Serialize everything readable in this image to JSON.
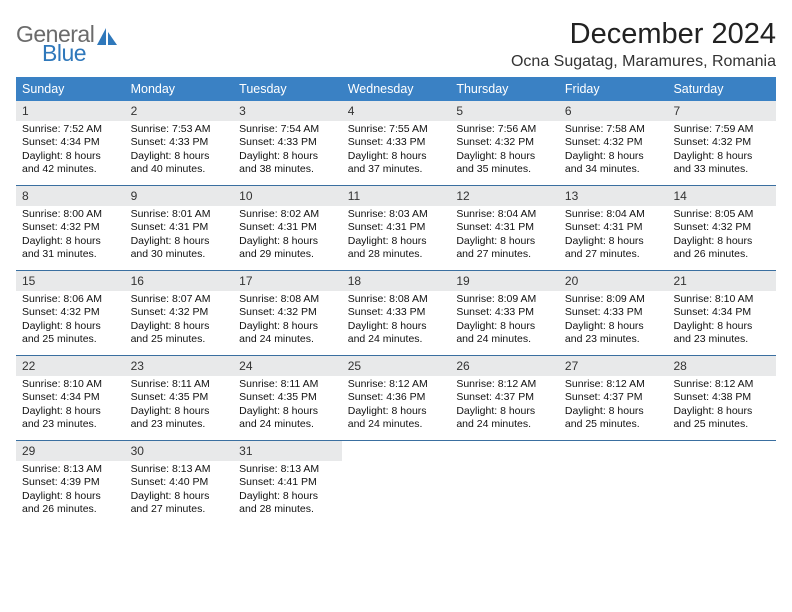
{
  "logo": {
    "word1": "General",
    "word2": "Blue"
  },
  "title": "December 2024",
  "location": "Ocna Sugatag, Maramures, Romania",
  "colors": {
    "header_bg": "#3a81c4",
    "daynum_bg": "#e8e9ea",
    "week_border": "#3a6fa0",
    "logo_gray": "#6b6b6b",
    "logo_blue": "#2f78bb"
  },
  "typography": {
    "title_fontsize": 29,
    "location_fontsize": 16,
    "dow_fontsize": 12.5,
    "daynum_fontsize": 12,
    "body_fontsize": 10.5
  },
  "days_of_week": [
    "Sunday",
    "Monday",
    "Tuesday",
    "Wednesday",
    "Thursday",
    "Friday",
    "Saturday"
  ],
  "weeks": [
    [
      {
        "n": "1",
        "sr": "7:52 AM",
        "ss": "4:34 PM",
        "dl": "8 hours and 42 minutes."
      },
      {
        "n": "2",
        "sr": "7:53 AM",
        "ss": "4:33 PM",
        "dl": "8 hours and 40 minutes."
      },
      {
        "n": "3",
        "sr": "7:54 AM",
        "ss": "4:33 PM",
        "dl": "8 hours and 38 minutes."
      },
      {
        "n": "4",
        "sr": "7:55 AM",
        "ss": "4:33 PM",
        "dl": "8 hours and 37 minutes."
      },
      {
        "n": "5",
        "sr": "7:56 AM",
        "ss": "4:32 PM",
        "dl": "8 hours and 35 minutes."
      },
      {
        "n": "6",
        "sr": "7:58 AM",
        "ss": "4:32 PM",
        "dl": "8 hours and 34 minutes."
      },
      {
        "n": "7",
        "sr": "7:59 AM",
        "ss": "4:32 PM",
        "dl": "8 hours and 33 minutes."
      }
    ],
    [
      {
        "n": "8",
        "sr": "8:00 AM",
        "ss": "4:32 PM",
        "dl": "8 hours and 31 minutes."
      },
      {
        "n": "9",
        "sr": "8:01 AM",
        "ss": "4:31 PM",
        "dl": "8 hours and 30 minutes."
      },
      {
        "n": "10",
        "sr": "8:02 AM",
        "ss": "4:31 PM",
        "dl": "8 hours and 29 minutes."
      },
      {
        "n": "11",
        "sr": "8:03 AM",
        "ss": "4:31 PM",
        "dl": "8 hours and 28 minutes."
      },
      {
        "n": "12",
        "sr": "8:04 AM",
        "ss": "4:31 PM",
        "dl": "8 hours and 27 minutes."
      },
      {
        "n": "13",
        "sr": "8:04 AM",
        "ss": "4:31 PM",
        "dl": "8 hours and 27 minutes."
      },
      {
        "n": "14",
        "sr": "8:05 AM",
        "ss": "4:32 PM",
        "dl": "8 hours and 26 minutes."
      }
    ],
    [
      {
        "n": "15",
        "sr": "8:06 AM",
        "ss": "4:32 PM",
        "dl": "8 hours and 25 minutes."
      },
      {
        "n": "16",
        "sr": "8:07 AM",
        "ss": "4:32 PM",
        "dl": "8 hours and 25 minutes."
      },
      {
        "n": "17",
        "sr": "8:08 AM",
        "ss": "4:32 PM",
        "dl": "8 hours and 24 minutes."
      },
      {
        "n": "18",
        "sr": "8:08 AM",
        "ss": "4:33 PM",
        "dl": "8 hours and 24 minutes."
      },
      {
        "n": "19",
        "sr": "8:09 AM",
        "ss": "4:33 PM",
        "dl": "8 hours and 24 minutes."
      },
      {
        "n": "20",
        "sr": "8:09 AM",
        "ss": "4:33 PM",
        "dl": "8 hours and 23 minutes."
      },
      {
        "n": "21",
        "sr": "8:10 AM",
        "ss": "4:34 PM",
        "dl": "8 hours and 23 minutes."
      }
    ],
    [
      {
        "n": "22",
        "sr": "8:10 AM",
        "ss": "4:34 PM",
        "dl": "8 hours and 23 minutes."
      },
      {
        "n": "23",
        "sr": "8:11 AM",
        "ss": "4:35 PM",
        "dl": "8 hours and 23 minutes."
      },
      {
        "n": "24",
        "sr": "8:11 AM",
        "ss": "4:35 PM",
        "dl": "8 hours and 24 minutes."
      },
      {
        "n": "25",
        "sr": "8:12 AM",
        "ss": "4:36 PM",
        "dl": "8 hours and 24 minutes."
      },
      {
        "n": "26",
        "sr": "8:12 AM",
        "ss": "4:37 PM",
        "dl": "8 hours and 24 minutes."
      },
      {
        "n": "27",
        "sr": "8:12 AM",
        "ss": "4:37 PM",
        "dl": "8 hours and 25 minutes."
      },
      {
        "n": "28",
        "sr": "8:12 AM",
        "ss": "4:38 PM",
        "dl": "8 hours and 25 minutes."
      }
    ],
    [
      {
        "n": "29",
        "sr": "8:13 AM",
        "ss": "4:39 PM",
        "dl": "8 hours and 26 minutes."
      },
      {
        "n": "30",
        "sr": "8:13 AM",
        "ss": "4:40 PM",
        "dl": "8 hours and 27 minutes."
      },
      {
        "n": "31",
        "sr": "8:13 AM",
        "ss": "4:41 PM",
        "dl": "8 hours and 28 minutes."
      },
      null,
      null,
      null,
      null
    ]
  ],
  "labels": {
    "sunrise": "Sunrise:",
    "sunset": "Sunset:",
    "daylight": "Daylight:"
  }
}
